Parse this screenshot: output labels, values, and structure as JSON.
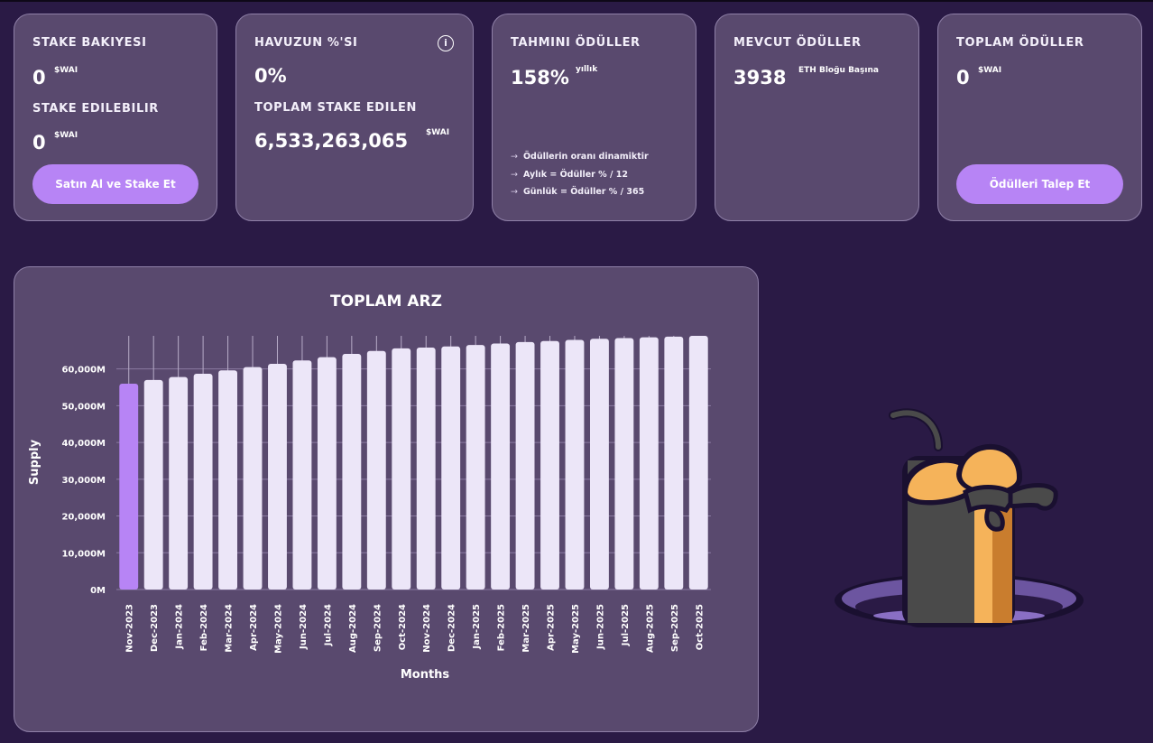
{
  "cards": {
    "stake": {
      "title": "STAKE BAKIYESI",
      "balance": "0",
      "balance_unit": "$WAI",
      "stakeable_title": "STAKE EDILEBILIR",
      "stakeable": "0",
      "stakeable_unit": "$WAI",
      "button": "Satın Al ve Stake Et"
    },
    "pool": {
      "title": "HAVUZUN %'SI",
      "percent": "0%",
      "info_icon": "i",
      "total_title": "TOPLAM STAKE EDILEN",
      "total": "6,533,263,065",
      "total_unit": "$WAI"
    },
    "estimated": {
      "title": "TAHMINI ÖDÜLLER",
      "value": "158%",
      "value_suffix": "yıllık",
      "notes": [
        "Ödüllerin oranı dinamiktir",
        "Aylık = Ödüller % / 12",
        "Günlük = Ödüller % / 365"
      ]
    },
    "current": {
      "title": "MEVCUT ÖDÜLLER",
      "value": "3938",
      "value_suffix": "ETH Bloğu Başına"
    },
    "total_rewards": {
      "title": "TOPLAM ÖDÜLLER",
      "value": "0",
      "value_unit": "$WAI",
      "button": "Ödülleri Talep Et"
    }
  },
  "colors": {
    "highlight_bar": "#b784f5",
    "bar": "#ece6f8"
  },
  "chart_data": {
    "type": "bar",
    "title": "TOPLAM ARZ",
    "xlabel": "Months",
    "ylabel": "Supply",
    "ylim": [
      0,
      69000
    ],
    "y_ticks": [
      0,
      10000,
      20000,
      30000,
      40000,
      50000,
      60000
    ],
    "y_tick_labels": [
      "0M",
      "10,000M",
      "20,000M",
      "30,000M",
      "40,000M",
      "50,000M",
      "60,000M"
    ],
    "categories": [
      "Nov-2023",
      "Dec-2023",
      "Jan-2024",
      "Feb-2024",
      "Mar-2024",
      "Apr-2024",
      "May-2024",
      "Jun-2024",
      "Jul-2024",
      "Aug-2024",
      "Sep-2024",
      "Oct-2024",
      "Nov-2024",
      "Dec-2024",
      "Jan-2025",
      "Feb-2025",
      "Mar-2025",
      "Apr-2025",
      "May-2025",
      "Jun-2025",
      "Jul-2025",
      "Aug-2025",
      "Sep-2025",
      "Oct-2025"
    ],
    "values": [
      56000,
      57000,
      57800,
      58700,
      59600,
      60500,
      61400,
      62300,
      63200,
      64100,
      64900,
      65600,
      65800,
      66100,
      66500,
      66900,
      67300,
      67600,
      67900,
      68200,
      68400,
      68600,
      68800,
      69000
    ],
    "highlight_index": 0
  }
}
